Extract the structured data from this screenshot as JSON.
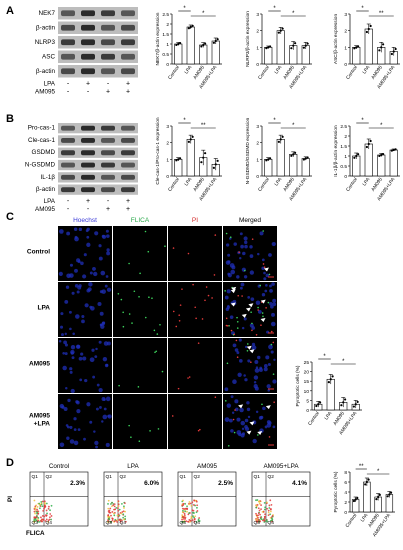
{
  "panels": {
    "A": "A",
    "B": "B",
    "C": "C",
    "D": "D"
  },
  "blotA": {
    "rows": [
      "NEK7",
      "β-actin",
      "NLRP3",
      "ASC",
      "β-actin"
    ],
    "treat": [
      {
        "label": "LPA",
        "marks": [
          "-",
          "+",
          "-",
          "+"
        ]
      },
      {
        "label": "AM095",
        "marks": [
          "-",
          "-",
          "+",
          "+"
        ]
      }
    ]
  },
  "blotB": {
    "rows": [
      "Pro-cas-1",
      "Cle-cas-1",
      "GSDMD",
      "N-GSDMD",
      "IL-1β",
      "β-actin"
    ],
    "treat": [
      {
        "label": "LPA",
        "marks": [
          "-",
          "+",
          "-",
          "+"
        ]
      },
      {
        "label": "AM095",
        "marks": [
          "-",
          "-",
          "+",
          "+"
        ]
      }
    ]
  },
  "micro": {
    "headers": [
      "Hoechst",
      "FLICA",
      "PI",
      "Merged"
    ],
    "header_colors": [
      "#3a3ad8",
      "#2aa84a",
      "#d42a2a",
      "#000000"
    ],
    "rows": [
      "Control",
      "LPA",
      "AM095",
      "AM095\n+LPA"
    ]
  },
  "flow": {
    "groups": [
      {
        "name": "Control",
        "pct": "2.3%"
      },
      {
        "name": "LPA",
        "pct": "6.0%"
      },
      {
        "name": "AM095",
        "pct": "2.5%"
      },
      {
        "name": "AM095+LPA",
        "pct": "4.1%"
      }
    ],
    "quadrants": [
      "Q1",
      "Q2",
      "Q3",
      "Q4"
    ],
    "ylabel": "PI",
    "xlabel": "FLICA"
  },
  "stars": {
    "single": "*",
    "double": "**"
  },
  "chart_data": [
    {
      "id": "nek7",
      "type": "bar",
      "categories": [
        "Control",
        "LPA",
        "AM095",
        "AM095+LPA"
      ],
      "values": [
        1.0,
        1.85,
        0.95,
        1.15
      ],
      "errors": [
        0.08,
        0.1,
        0.12,
        0.15
      ],
      "ylabel": "NEK7/β-actin expression",
      "ylim": [
        0,
        2.5
      ],
      "yticks": [
        0,
        0.5,
        1.0,
        1.5,
        2.0,
        2.5
      ],
      "sig": [
        {
          "from": 0,
          "to": 1,
          "label": "*"
        },
        {
          "from": 1,
          "to": 3,
          "label": "*"
        }
      ]
    },
    {
      "id": "nlrp3",
      "type": "bar",
      "categories": [
        "Control",
        "LPA",
        "AM095",
        "AM095+LPA"
      ],
      "values": [
        1.0,
        2.0,
        1.1,
        1.1
      ],
      "errors": [
        0.08,
        0.2,
        0.25,
        0.2
      ],
      "ylabel": "NLRP3/β-actin expression",
      "ylim": [
        0,
        3
      ],
      "yticks": [
        0,
        1,
        2,
        3
      ],
      "sig": [
        {
          "from": 0,
          "to": 1,
          "label": "*"
        },
        {
          "from": 1,
          "to": 3,
          "label": "*"
        }
      ]
    },
    {
      "id": "asc",
      "type": "bar",
      "categories": [
        "Control",
        "LPA",
        "AM095",
        "AM095+LPA"
      ],
      "values": [
        1.0,
        2.1,
        1.0,
        0.75
      ],
      "errors": [
        0.1,
        0.3,
        0.3,
        0.25
      ],
      "ylabel": "ASC/β-actin expression",
      "ylim": [
        0,
        3
      ],
      "yticks": [
        0,
        1,
        2,
        3
      ],
      "sig": [
        {
          "from": 0,
          "to": 1,
          "label": "*"
        },
        {
          "from": 1,
          "to": 3,
          "label": "**"
        }
      ]
    },
    {
      "id": "clecas",
      "type": "bar",
      "categories": [
        "Control",
        "LPA",
        "AM095",
        "AM095+LPA"
      ],
      "values": [
        1.0,
        2.2,
        1.1,
        0.7
      ],
      "errors": [
        0.1,
        0.25,
        0.45,
        0.35
      ],
      "ylabel": "Cle-cas-1/Pro-cas-1 expression",
      "ylim": [
        0,
        3
      ],
      "yticks": [
        0,
        1,
        2,
        3
      ],
      "sig": [
        {
          "from": 0,
          "to": 1,
          "label": "*"
        },
        {
          "from": 1,
          "to": 3,
          "label": "**"
        }
      ]
    },
    {
      "id": "ngsdmd",
      "type": "bar",
      "categories": [
        "Control",
        "LPA",
        "AM095",
        "AM095+LPA"
      ],
      "values": [
        1.0,
        2.2,
        1.3,
        1.05
      ],
      "errors": [
        0.1,
        0.25,
        0.15,
        0.1
      ],
      "ylabel": "N-GSDMD/GSDMD expression",
      "ylim": [
        0,
        3
      ],
      "yticks": [
        0,
        1,
        2,
        3
      ],
      "sig": [
        {
          "from": 0,
          "to": 1,
          "label": "*"
        },
        {
          "from": 1,
          "to": 3,
          "label": "*"
        }
      ]
    },
    {
      "id": "il1b",
      "type": "bar",
      "categories": [
        "Control",
        "LPA",
        "AM095",
        "AM095+LPA"
      ],
      "values": [
        1.0,
        1.6,
        1.05,
        1.3
      ],
      "errors": [
        0.15,
        0.25,
        0.08,
        0.05
      ],
      "ylabel": "IL-1β/β-actin expression",
      "ylim": [
        0,
        2.5
      ],
      "yticks": [
        0,
        0.5,
        1.0,
        1.5,
        2.0,
        2.5
      ],
      "sig": [
        {
          "from": 0,
          "to": 1,
          "label": "*"
        },
        {
          "from": 1,
          "to": 3,
          "label": "*"
        }
      ]
    },
    {
      "id": "pyro_c",
      "type": "bar",
      "categories": [
        "Control",
        "LPA",
        "AM095",
        "AM095+LPA"
      ],
      "values": [
        3,
        16,
        4,
        3
      ],
      "errors": [
        1.5,
        2.5,
        2.5,
        2
      ],
      "ylabel": "Pyroptotic cells (%)",
      "ylim": [
        0,
        25
      ],
      "yticks": [
        0,
        5,
        10,
        15,
        20,
        25
      ],
      "sig": [
        {
          "from": 0,
          "to": 1,
          "label": "*"
        },
        {
          "from": 1,
          "to": 3,
          "label": "*"
        }
      ]
    },
    {
      "id": "pyro_d",
      "type": "bar",
      "categories": [
        "Control",
        "LPA",
        "AM095",
        "AM095+LPA"
      ],
      "values": [
        2.5,
        6.0,
        3.0,
        3.5
      ],
      "errors": [
        0.5,
        0.8,
        0.7,
        0.6
      ],
      "ylabel": "Pyroptotic cells (%)",
      "ylim": [
        0,
        8
      ],
      "yticks": [
        0,
        2,
        4,
        6,
        8
      ],
      "sig": [
        {
          "from": 0,
          "to": 1,
          "label": "**"
        },
        {
          "from": 1,
          "to": 3,
          "label": "*"
        }
      ]
    }
  ]
}
